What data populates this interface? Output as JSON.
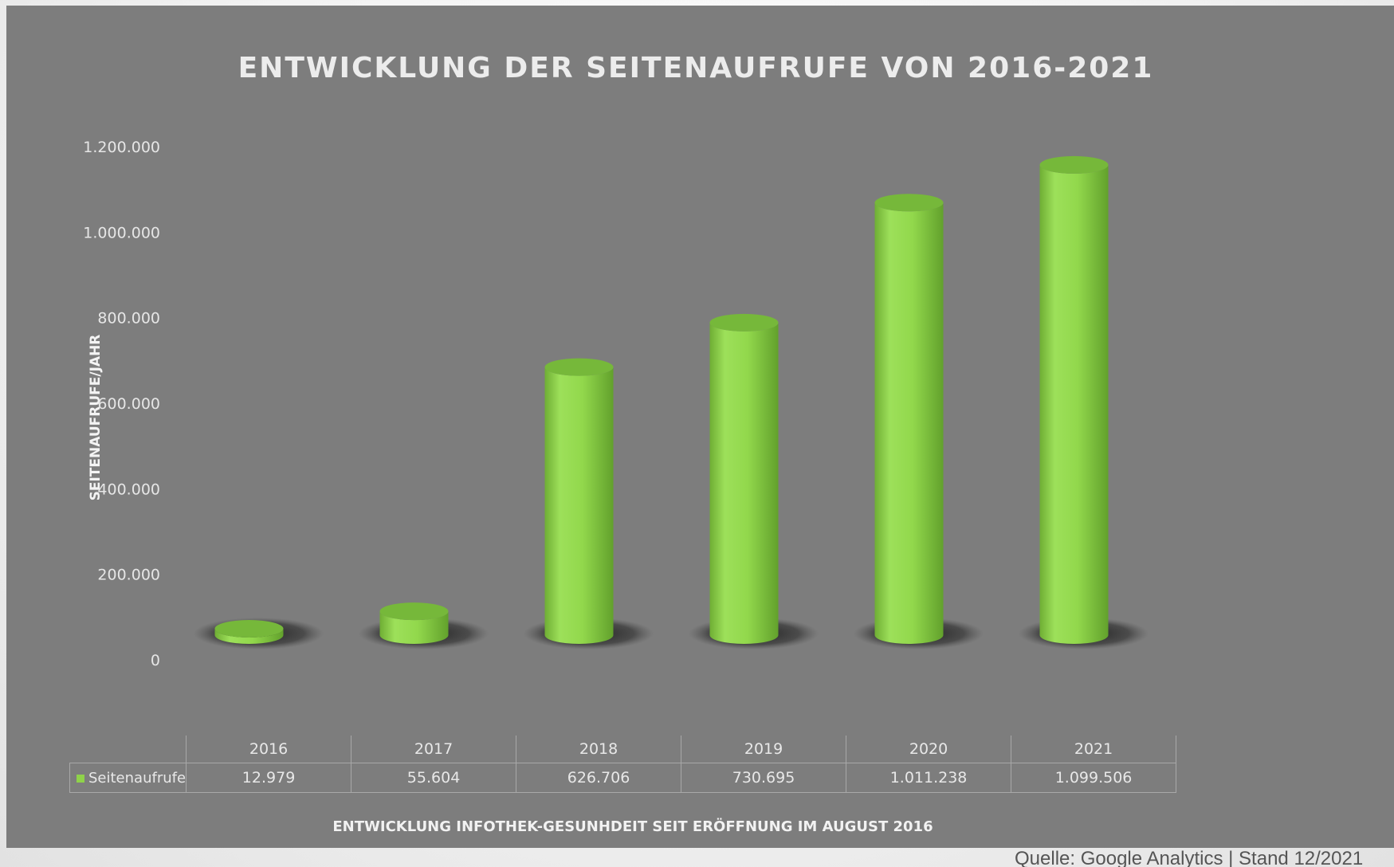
{
  "chart_data": {
    "type": "bar",
    "title": "ENTWICKLUNG DER SEITENAUFRUFE VON 2016-2021",
    "xlabel": "ENTWICKLUNG INFOTHEK-GESUNHDEIT SEIT ERÖFFNUNG IM AUGUST 2016",
    "ylabel": "SEITENAUFRUFE/JAHR",
    "categories": [
      "2016",
      "2017",
      "2018",
      "2019",
      "2020",
      "2021"
    ],
    "series": [
      {
        "name": "Seitenaufrufe",
        "values": [
          12979,
          55604,
          626706,
          730695,
          1011238,
          1099506
        ],
        "value_labels": [
          "12.979",
          "55.604",
          "626.706",
          "730.695",
          "1.011.238",
          "1.099.506"
        ],
        "color": "#8fd24a"
      }
    ],
    "ylim": [
      0,
      1200000
    ],
    "y_ticks": [
      0,
      200000,
      400000,
      600000,
      800000,
      1000000,
      1200000
    ],
    "y_tick_labels": [
      "0",
      "200.000",
      "400.000",
      "600.000",
      "800.000",
      "1.000.000",
      "1.200.000"
    ],
    "grid": false,
    "legend": "data-table",
    "style": "3d-cylinder"
  },
  "footer": {
    "source": "Quelle: Google Analytics | Stand 12/2021"
  },
  "colors": {
    "panel_background": "#7d7d7d",
    "bar_green": "#8fd24a",
    "bar_top": "#76b83a",
    "text_light": "#e8e8e8"
  }
}
